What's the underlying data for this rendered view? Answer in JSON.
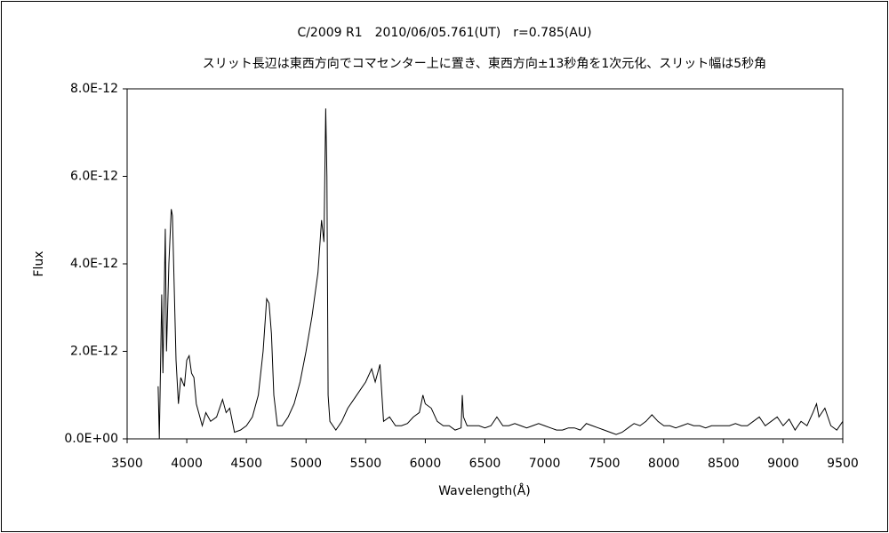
{
  "chart_data": {
    "type": "line",
    "title": "C/2009 R1　2010/06/05.761(UT)　r=0.785(AU)",
    "subtitle": "スリット長辺は東西方向でコマセンター上に置き、東西方向±13秒角を1次元化、スリット幅は5秒角",
    "x_label": "Wavelength(Å)",
    "y_label": "Flux",
    "color": "#000000",
    "grid": false,
    "xlim": [
      3500,
      9500
    ],
    "xticks": [
      3500,
      4000,
      4500,
      5000,
      5500,
      6000,
      6500,
      7000,
      7500,
      8000,
      8500,
      9000,
      9500
    ],
    "ylim": [
      0,
      8e-12
    ],
    "yticks": [
      {
        "value": 0,
        "label": "0.0E+00"
      },
      {
        "value": 2e-12,
        "label": "2.0E-12"
      },
      {
        "value": 4e-12,
        "label": "4.0E-12"
      },
      {
        "value": 6e-12,
        "label": "6.0E-12"
      },
      {
        "value": 8e-12,
        "label": "8.0E-12"
      }
    ],
    "x": [
      3760,
      3770,
      3790,
      3800,
      3820,
      3830,
      3850,
      3870,
      3880,
      3890,
      3910,
      3930,
      3950,
      3980,
      4000,
      4020,
      4040,
      4060,
      4080,
      4100,
      4130,
      4160,
      4200,
      4250,
      4300,
      4330,
      4360,
      4400,
      4450,
      4500,
      4550,
      4600,
      4640,
      4670,
      4690,
      4710,
      4730,
      4760,
      4800,
      4850,
      4900,
      4950,
      5000,
      5050,
      5100,
      5130,
      5150,
      5165,
      5175,
      5185,
      5200,
      5250,
      5300,
      5350,
      5400,
      5450,
      5500,
      5550,
      5580,
      5620,
      5650,
      5700,
      5750,
      5800,
      5850,
      5900,
      5950,
      5980,
      6000,
      6050,
      6100,
      6150,
      6200,
      6250,
      6300,
      6310,
      6320,
      6350,
      6400,
      6450,
      6500,
      6550,
      6600,
      6650,
      6700,
      6750,
      6800,
      6850,
      6900,
      6950,
      7000,
      7050,
      7100,
      7150,
      7200,
      7250,
      7300,
      7350,
      7400,
      7450,
      7500,
      7550,
      7600,
      7650,
      7700,
      7750,
      7800,
      7850,
      7900,
      7950,
      8000,
      8050,
      8100,
      8150,
      8200,
      8250,
      8300,
      8350,
      8400,
      8450,
      8500,
      8550,
      8600,
      8650,
      8700,
      8750,
      8800,
      8850,
      8900,
      8950,
      9000,
      9050,
      9100,
      9150,
      9200,
      9250,
      9280,
      9300,
      9350,
      9400,
      9450,
      9500
    ],
    "values": [
      1.2e-12,
      0,
      3.3e-12,
      1.5e-12,
      4.8e-12,
      2e-12,
      4e-12,
      5.25e-12,
      5.1e-12,
      4e-12,
      1.8e-12,
      8e-13,
      1.4e-12,
      1.2e-12,
      1.8e-12,
      1.9e-12,
      1.5e-12,
      1.4e-12,
      8e-13,
      6e-13,
      3e-13,
      6e-13,
      4e-13,
      5e-13,
      9e-13,
      6e-13,
      7e-13,
      1.5e-13,
      2e-13,
      3e-13,
      5e-13,
      1e-12,
      2e-12,
      3.2e-12,
      3.1e-12,
      2.4e-12,
      1e-12,
      3e-13,
      3e-13,
      5e-13,
      8e-13,
      1.3e-12,
      2e-12,
      2.8e-12,
      3.8e-12,
      5e-12,
      4.5e-12,
      7.55e-12,
      6e-12,
      1e-12,
      4e-13,
      2e-13,
      4e-13,
      7e-13,
      9e-13,
      1.1e-12,
      1.3e-12,
      1.6e-12,
      1.3e-12,
      1.7e-12,
      4e-13,
      5e-13,
      3e-13,
      3e-13,
      3.5e-13,
      5e-13,
      6e-13,
      1e-12,
      8e-13,
      7e-13,
      4e-13,
      3e-13,
      3e-13,
      2e-13,
      2.5e-13,
      1e-12,
      5e-13,
      3e-13,
      3e-13,
      3e-13,
      2.5e-13,
      3e-13,
      5e-13,
      3e-13,
      3e-13,
      3.5e-13,
      3e-13,
      2.5e-13,
      3e-13,
      3.5e-13,
      3e-13,
      2.5e-13,
      2e-13,
      2e-13,
      2.5e-13,
      2.5e-13,
      2e-13,
      3.5e-13,
      3e-13,
      2.5e-13,
      2e-13,
      1.5e-13,
      1e-13,
      1.5e-13,
      2.5e-13,
      3.5e-13,
      3e-13,
      4e-13,
      5.5e-13,
      4e-13,
      3e-13,
      3e-13,
      2.5e-13,
      3e-13,
      3.5e-13,
      3e-13,
      3e-13,
      2.5e-13,
      3e-13,
      3e-13,
      3e-13,
      3e-13,
      3.5e-13,
      3e-13,
      3e-13,
      4e-13,
      5e-13,
      3e-13,
      4e-13,
      5e-13,
      3e-13,
      4.5e-13,
      2e-13,
      4e-13,
      3e-13,
      6e-13,
      8e-13,
      5e-13,
      7e-13,
      3e-13,
      2e-13,
      4e-13
    ]
  }
}
